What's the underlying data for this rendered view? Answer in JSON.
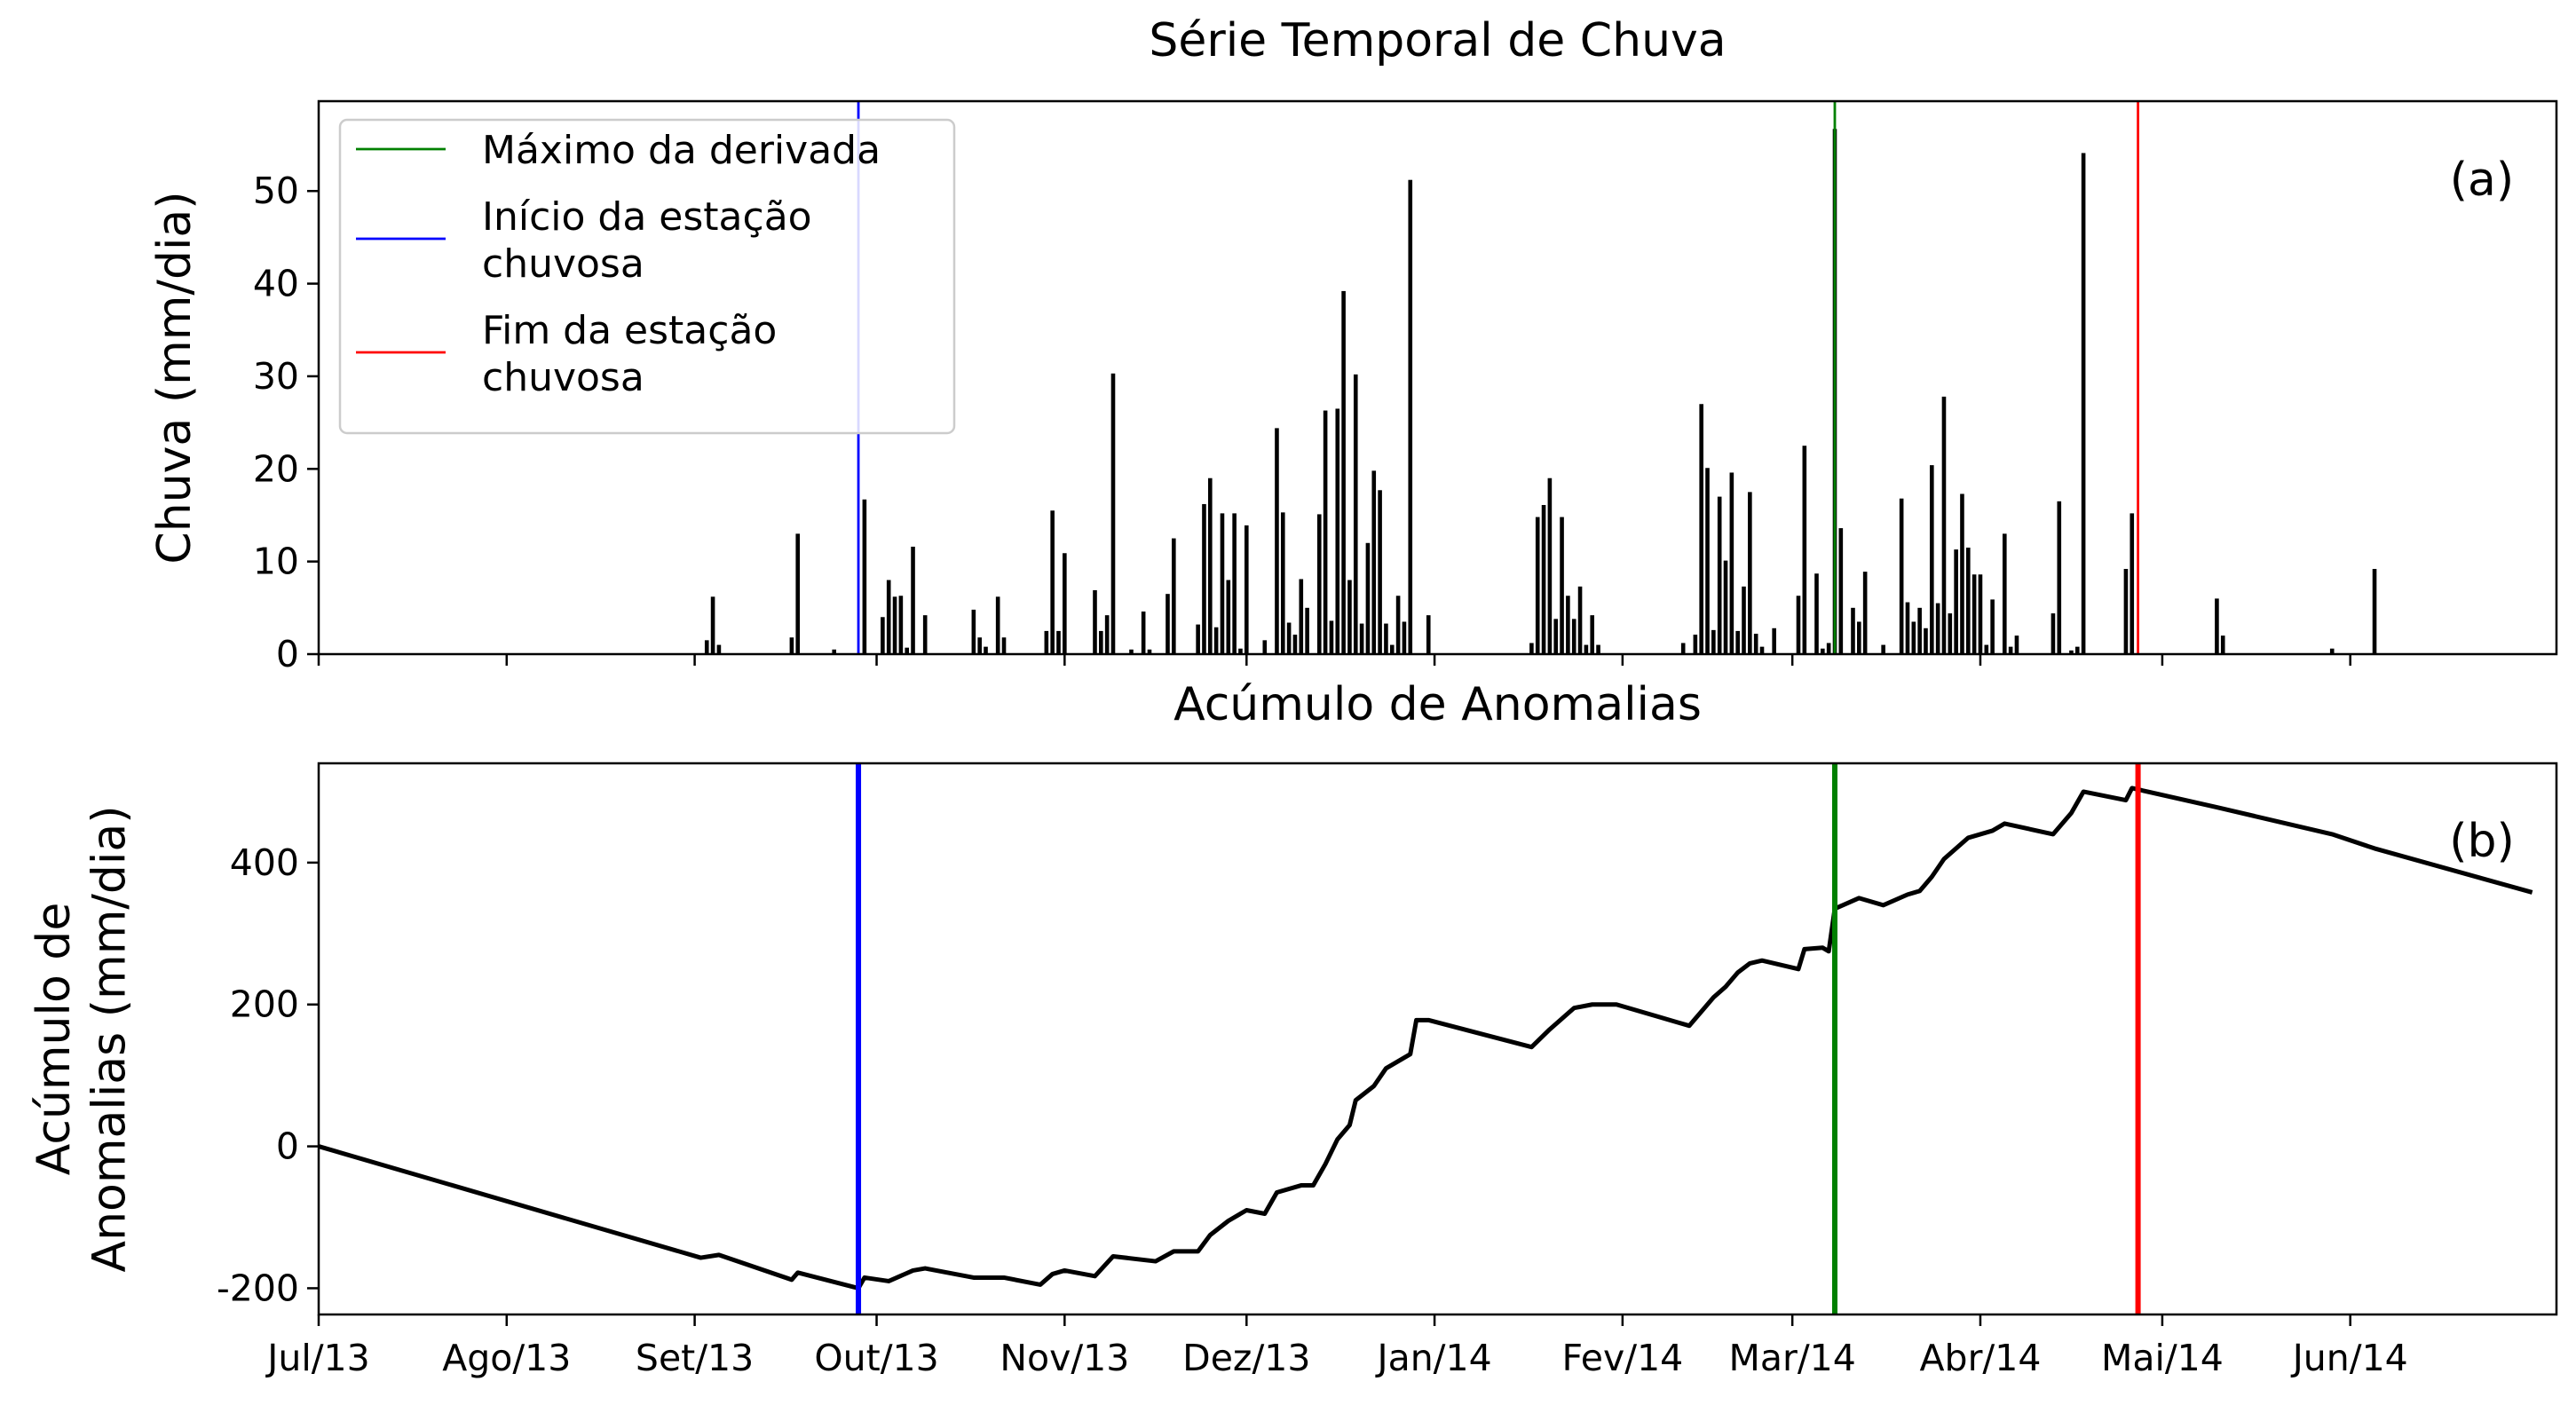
{
  "chart_data": [
    {
      "type": "bar",
      "title": "Série Temporal de Chuva",
      "ylabel": "Chuva (mm/dia)",
      "annotation": "(a)",
      "color": "#000000",
      "x": [
        64,
        65,
        66,
        78,
        79,
        85,
        90,
        93,
        94,
        95,
        96,
        97,
        98,
        100,
        108,
        109,
        110,
        112,
        113,
        120,
        121,
        122,
        123,
        128,
        129,
        130,
        131,
        134,
        136,
        137,
        140,
        141,
        145,
        146,
        147,
        148,
        149,
        150,
        151,
        152,
        153,
        156,
        158,
        159,
        160,
        161,
        162,
        163,
        165,
        166,
        167,
        168,
        169,
        170,
        171,
        172,
        173,
        174,
        175,
        176,
        177,
        178,
        179,
        180,
        183,
        200,
        201,
        202,
        203,
        204,
        205,
        206,
        207,
        208,
        209,
        210,
        211,
        225,
        227,
        228,
        229,
        230,
        231,
        232,
        233,
        234,
        235,
        236,
        237,
        238,
        240,
        244,
        245,
        247,
        248,
        249,
        250,
        251,
        253,
        254,
        255,
        258,
        261,
        262,
        263,
        264,
        265,
        266,
        267,
        268,
        269,
        270,
        271,
        272,
        273,
        274,
        275,
        276,
        278,
        279,
        280,
        286,
        287,
        289,
        290,
        291,
        298,
        299,
        313,
        314,
        332,
        339
      ],
      "values": [
        1.5,
        6.2,
        1,
        1.8,
        13,
        0.5,
        16.7,
        4,
        8,
        6.2,
        6.3,
        0.7,
        11.6,
        4.2,
        4.8,
        1.8,
        0.8,
        6.2,
        1.8,
        2.5,
        15.5,
        2.5,
        10.9,
        6.9,
        2.5,
        4.2,
        30.3,
        0.5,
        4.6,
        0.5,
        6.5,
        12.5,
        3.2,
        16.2,
        19,
        2.9,
        15.2,
        8,
        15.2,
        0.6,
        13.9,
        1.5,
        24.4,
        15.3,
        3.4,
        2.1,
        8.1,
        5,
        15.1,
        26.3,
        3.6,
        26.5,
        39.2,
        8,
        30.2,
        3.3,
        12,
        19.8,
        17.7,
        3.3,
        1,
        6.3,
        3.5,
        51.2,
        4.2,
        1.2,
        14.8,
        16.1,
        19,
        3.8,
        14.8,
        6.3,
        3.8,
        7.3,
        1,
        4.2,
        1,
        1.2,
        2.1,
        27,
        20.1,
        2.6,
        17,
        10.1,
        19.6,
        2.5,
        7.3,
        17.5,
        2.2,
        0.8,
        2.8,
        6.3,
        22.5,
        8.7,
        0.6,
        1.2,
        56.7,
        13.6,
        5,
        3.5,
        8.9,
        1,
        16.8,
        5.6,
        3.5,
        5,
        2.8,
        20.4,
        5.5,
        27.8,
        4.4,
        11.3,
        17.3,
        11.5,
        8.6,
        8.6,
        1,
        5.9,
        13,
        0.8,
        2,
        4.4,
        16.5,
        0.4,
        0.8,
        54.1,
        9.2,
        15.2,
        6,
        2,
        0.6,
        9.2
      ],
      "xlim": [
        0,
        369
      ],
      "xticks": [
        0,
        31,
        62,
        92,
        123,
        153,
        184,
        215,
        243,
        274,
        304,
        335
      ],
      "ylim": [
        0,
        59.7
      ],
      "yticks": [
        0,
        10,
        20,
        30,
        40,
        50
      ],
      "vlines": [
        {
          "name": "Máximo da derivada",
          "color": "#008000",
          "x": 250
        },
        {
          "name": "Início da estação\nchuvosa",
          "color": "#0000ff",
          "x": 89
        },
        {
          "name": "Fim da estação\nchuvosa",
          "color": "#ff0000",
          "x": 300
        }
      ],
      "legend": "upper left"
    },
    {
      "type": "line",
      "title": "Acúmulo de Anomalias",
      "ylabel": "Acúmulo de\nAnomalias (mm/dia)",
      "annotation": "(b)",
      "color": "#000000",
      "x": [
        0,
        63,
        66,
        78,
        79,
        89,
        90,
        94,
        98,
        100,
        108,
        113,
        119,
        121,
        123,
        128,
        131,
        138,
        141,
        145,
        147,
        150,
        153,
        156,
        158,
        162,
        164,
        166,
        168,
        170,
        171,
        174,
        176,
        179,
        180,
        181,
        183,
        200,
        203,
        205,
        207,
        210,
        214,
        224,
        226,
        228,
        230,
        232,
        234,
        236,
        238,
        244,
        245,
        248,
        249,
        250,
        254,
        258,
        262,
        264,
        266,
        268,
        270,
        272,
        276,
        278,
        286,
        289,
        291,
        298,
        299,
        313,
        332,
        339,
        365
      ],
      "values": [
        0,
        -157,
        -153,
        -188,
        -178,
        -200,
        -185,
        -190,
        -175,
        -172,
        -185,
        -185,
        -195,
        -180,
        -175,
        -183,
        -155,
        -162,
        -148,
        -148,
        -125,
        -105,
        -90,
        -95,
        -65,
        -55,
        -55,
        -25,
        10,
        30,
        65,
        85,
        110,
        125,
        130,
        178,
        178,
        140,
        165,
        180,
        195,
        200,
        200,
        175,
        170,
        190,
        210,
        225,
        245,
        258,
        262,
        250,
        278,
        280,
        275,
        335,
        350,
        340,
        355,
        360,
        380,
        405,
        420,
        435,
        445,
        455,
        440,
        470,
        500,
        488,
        505,
        478,
        440,
        420,
        358
      ],
      "xlim": [
        0,
        369
      ],
      "xticks": [
        {
          "value": 0,
          "label": "Jul/13"
        },
        {
          "value": 31,
          "label": "Ago/13"
        },
        {
          "value": 62,
          "label": "Set/13"
        },
        {
          "value": 92,
          "label": "Out/13"
        },
        {
          "value": 123,
          "label": "Nov/13"
        },
        {
          "value": 153,
          "label": "Dez/13"
        },
        {
          "value": 184,
          "label": "Jan/14"
        },
        {
          "value": 215,
          "label": "Fev/14"
        },
        {
          "value": 243,
          "label": "Mar/14"
        },
        {
          "value": 274,
          "label": "Abr/14"
        },
        {
          "value": 304,
          "label": "Mai/14"
        },
        {
          "value": 335,
          "label": "Jun/14"
        }
      ],
      "ylim": [
        -237,
        540
      ],
      "yticks": [
        -200,
        0,
        200,
        400
      ],
      "vlines": [
        {
          "color": "#008000",
          "x": 250
        },
        {
          "color": "#0000ff",
          "x": 89
        },
        {
          "color": "#ff0000",
          "x": 300
        }
      ]
    }
  ]
}
